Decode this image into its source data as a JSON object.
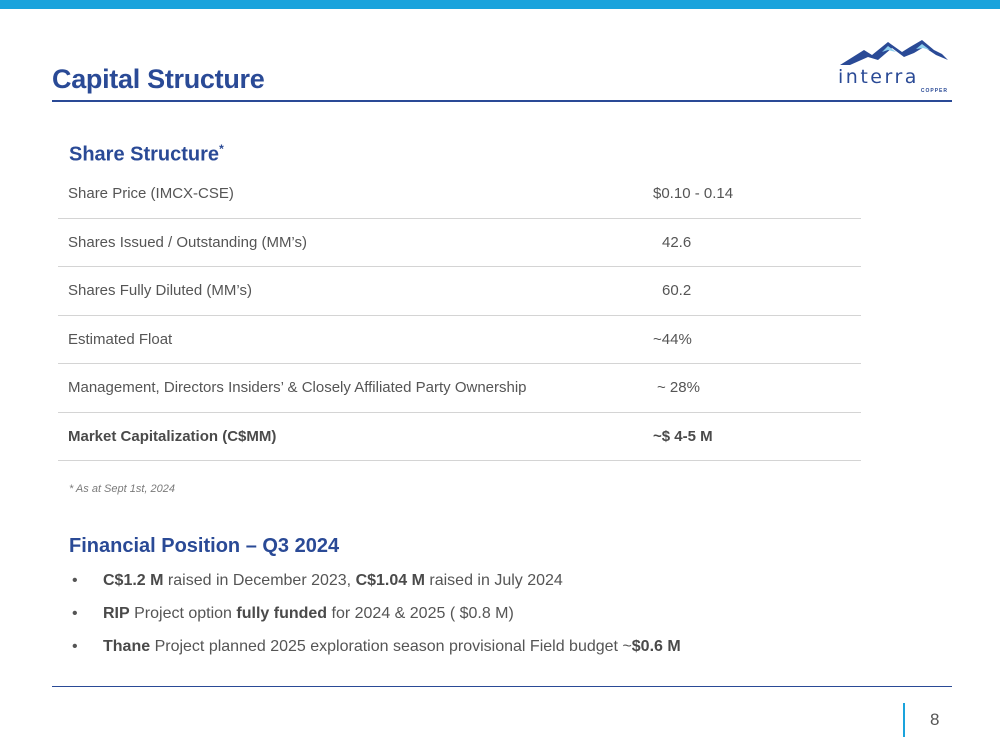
{
  "slide": {
    "title": "Capital Structure",
    "page_number": "8"
  },
  "logo": {
    "wordmark": "interra",
    "subtext": "COPPER"
  },
  "share_structure": {
    "title": "Share Structure",
    "title_marker": "*",
    "rows": [
      {
        "label": "Share Price (IMCX-CSE)",
        "value": "$0.10 - 0.14",
        "bold": false
      },
      {
        "label": "Shares Issued / Outstanding (MM’s)",
        "value": "42.6",
        "bold": false
      },
      {
        "label": "Shares Fully Diluted (MM’s)",
        "value": "60.2",
        "bold": false
      },
      {
        "label": "Estimated Float",
        "value": "~44%",
        "bold": false
      },
      {
        "label": "Management, Directors Insiders’ & Closely Affiliated Party Ownership",
        "value": "~ 28%",
        "bold": false
      },
      {
        "label": "Market Capitalization (C$MM)",
        "value": "~$ 4-5 M",
        "bold": true
      }
    ],
    "footnote": "* As at Sept 1st, 2024"
  },
  "financial_position": {
    "title": "Financial Position – Q3 2024",
    "bullet_symbol": "•",
    "bullets": [
      {
        "b1": "C$1.2 M",
        "t1": " raised in December 2023, ",
        "b2": "C$1.04 M",
        "t2": "  raised in July 2024"
      },
      {
        "b1": "RIP",
        "t1": " Project option ",
        "b2": "fully funded",
        "t2": " for 2024 & 2025 ( $0.8 M)"
      },
      {
        "b1": "Thane",
        "t1": " Project planned 2025 exploration season provisional Field budget ~",
        "b2": "$0.6 M",
        "t2": ""
      }
    ]
  },
  "colors": {
    "accent_blue": "#1aa3dc",
    "title_navy": "#2a4a96",
    "body_text": "#555555"
  }
}
